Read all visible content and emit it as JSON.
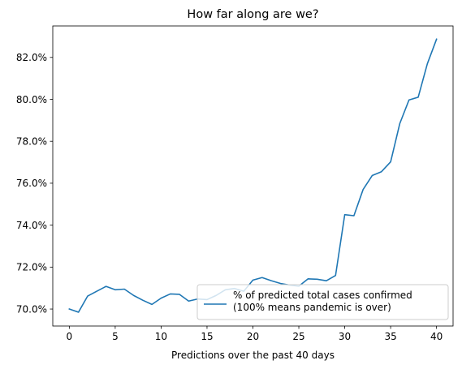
{
  "chart_data": {
    "type": "line",
    "title": "How far along are we?",
    "xlabel": "Predictions over the past 40 days",
    "ylabel": "",
    "xlim": [
      -1.8,
      41.8
    ],
    "ylim": [
      69.19,
      83.5
    ],
    "x_ticks": [
      0,
      5,
      10,
      15,
      20,
      25,
      30,
      35,
      40
    ],
    "y_ticks": [
      70,
      72,
      74,
      76,
      78,
      80,
      82
    ],
    "y_tick_format": "percent_1dp",
    "grid": false,
    "legend_position": "lower-right",
    "line_color": "#1f77b4",
    "series": [
      {
        "name": "% of predicted total cases confirmed\n(100% means pandemic is over)",
        "x": [
          0,
          1,
          2,
          3,
          4,
          5,
          6,
          7,
          8,
          9,
          10,
          11,
          12,
          13,
          14,
          15,
          16,
          17,
          18,
          19,
          20,
          21,
          22,
          23,
          24,
          25,
          26,
          27,
          28,
          29,
          30,
          31,
          32,
          33,
          34,
          35,
          36,
          37,
          38,
          39,
          40
        ],
        "values": [
          70.0,
          69.85,
          70.62,
          70.85,
          71.08,
          70.92,
          70.95,
          70.65,
          70.42,
          70.22,
          70.52,
          70.72,
          70.7,
          70.38,
          70.48,
          70.45,
          70.65,
          70.92,
          70.98,
          70.85,
          71.38,
          71.5,
          71.35,
          71.22,
          71.14,
          71.09,
          71.44,
          71.42,
          71.35,
          71.6,
          74.5,
          74.45,
          75.7,
          76.37,
          76.55,
          77.02,
          78.85,
          79.97,
          80.1,
          81.7,
          82.87
        ]
      }
    ]
  }
}
